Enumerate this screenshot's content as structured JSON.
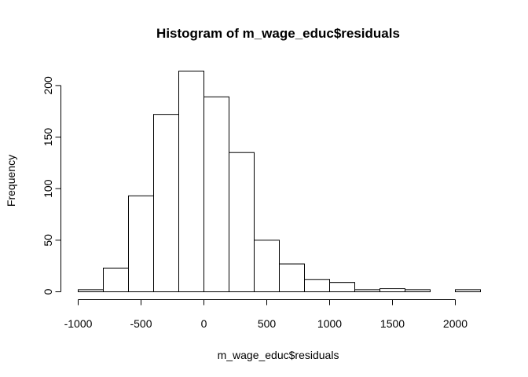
{
  "chart_data": {
    "type": "bar",
    "title": "Histogram of m_wage_educ$residuals",
    "xlabel": "m_wage_educ$residuals",
    "ylabel": "Frequency",
    "bin_edges": [
      -1000,
      -800,
      -600,
      -400,
      -200,
      0,
      200,
      400,
      600,
      800,
      1000,
      1200,
      1400,
      1600,
      1800,
      2000,
      2200
    ],
    "values": [
      2,
      23,
      93,
      172,
      214,
      189,
      135,
      50,
      27,
      12,
      9,
      2,
      3,
      2,
      0,
      2
    ],
    "xlim": [
      -1000,
      2200
    ],
    "ylim": [
      0,
      214
    ],
    "x_ticks": [
      -1000,
      -500,
      0,
      500,
      1000,
      1500,
      2000
    ],
    "x_tick_labels": [
      "-1000",
      "-500",
      "0",
      "500",
      "1000",
      "1500",
      "2000"
    ],
    "y_ticks": [
      0,
      50,
      100,
      150,
      200
    ],
    "y_tick_labels": [
      "0",
      "50",
      "100",
      "150",
      "200"
    ],
    "grid": false,
    "legend": "none",
    "bar_fill": "#ffffff",
    "bar_stroke": "#000000"
  }
}
